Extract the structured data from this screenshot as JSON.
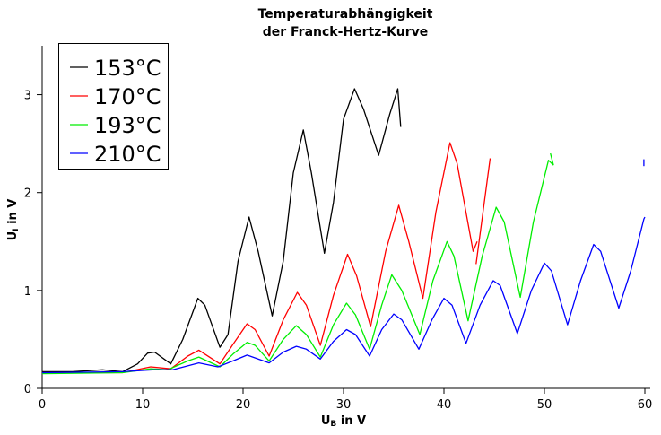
{
  "chart_data": {
    "type": "line",
    "title": "Temperaturabhängigkeit",
    "subtitle": "der Franck-Hertz-Kurve",
    "xlabel": {
      "main": "U",
      "sub": "B",
      "rest": " in V"
    },
    "ylabel": {
      "main": "U",
      "sub": "I",
      "rest": " in V"
    },
    "xlim": [
      0,
      60
    ],
    "ylim": [
      0,
      3.5
    ],
    "xticks": [
      0,
      10,
      20,
      30,
      40,
      50,
      60
    ],
    "yticks": [
      0,
      1,
      2,
      3
    ],
    "grid": false,
    "legend_position": "top-left",
    "series": [
      {
        "name": "153°C",
        "color": "#000000",
        "points": [
          [
            0,
            0.17
          ],
          [
            3,
            0.17
          ],
          [
            6,
            0.19
          ],
          [
            8,
            0.17
          ],
          [
            9.5,
            0.25
          ],
          [
            10.5,
            0.36
          ],
          [
            11.2,
            0.37
          ],
          [
            12.8,
            0.25
          ],
          [
            14,
            0.5
          ],
          [
            15.5,
            0.92
          ],
          [
            16.2,
            0.85
          ],
          [
            17.7,
            0.42
          ],
          [
            18.5,
            0.55
          ],
          [
            19.5,
            1.3
          ],
          [
            20.6,
            1.75
          ],
          [
            21.5,
            1.4
          ],
          [
            22.9,
            0.74
          ],
          [
            24,
            1.3
          ],
          [
            25,
            2.2
          ],
          [
            26,
            2.64
          ],
          [
            26.8,
            2.2
          ],
          [
            28.1,
            1.38
          ],
          [
            29,
            1.9
          ],
          [
            30,
            2.75
          ],
          [
            31.1,
            3.06
          ],
          [
            32,
            2.85
          ],
          [
            33.5,
            2.38
          ],
          [
            34.6,
            2.8
          ],
          [
            35.4,
            3.06
          ],
          [
            35.7,
            2.67
          ]
        ],
        "extra": []
      },
      {
        "name": "170°C",
        "color": "#ff0000",
        "points": [
          [
            0,
            0.16
          ],
          [
            8,
            0.16
          ],
          [
            10.8,
            0.22
          ],
          [
            12.8,
            0.2
          ],
          [
            14.5,
            0.33
          ],
          [
            15.6,
            0.39
          ],
          [
            17.7,
            0.25
          ],
          [
            19,
            0.45
          ],
          [
            20.4,
            0.66
          ],
          [
            21.2,
            0.6
          ],
          [
            22.6,
            0.33
          ],
          [
            24,
            0.7
          ],
          [
            25.4,
            0.98
          ],
          [
            26.3,
            0.85
          ],
          [
            27.7,
            0.44
          ],
          [
            29,
            0.95
          ],
          [
            30.4,
            1.37
          ],
          [
            31.3,
            1.15
          ],
          [
            32.7,
            0.63
          ],
          [
            34.2,
            1.4
          ],
          [
            35.5,
            1.87
          ],
          [
            36.5,
            1.5
          ],
          [
            37.9,
            0.92
          ],
          [
            39.2,
            1.8
          ],
          [
            40.6,
            2.51
          ],
          [
            41.3,
            2.3
          ],
          [
            42.9,
            1.4
          ],
          [
            43.3,
            1.5
          ]
        ],
        "extra": [
          [
            43.2,
            1.27
          ],
          [
            44.6,
            2.35
          ]
        ]
      },
      {
        "name": "193°C",
        "color": "#00ee00",
        "points": [
          [
            0,
            0.15
          ],
          [
            8,
            0.16
          ],
          [
            10.8,
            0.2
          ],
          [
            12.5,
            0.19
          ],
          [
            14.5,
            0.28
          ],
          [
            15.6,
            0.32
          ],
          [
            17.7,
            0.22
          ],
          [
            19,
            0.35
          ],
          [
            20.4,
            0.47
          ],
          [
            21.2,
            0.44
          ],
          [
            22.6,
            0.28
          ],
          [
            24,
            0.5
          ],
          [
            25.3,
            0.64
          ],
          [
            26.3,
            0.55
          ],
          [
            27.7,
            0.32
          ],
          [
            29,
            0.65
          ],
          [
            30.3,
            0.87
          ],
          [
            31.2,
            0.75
          ],
          [
            32.6,
            0.4
          ],
          [
            33.8,
            0.85
          ],
          [
            34.8,
            1.16
          ],
          [
            35.8,
            1.0
          ],
          [
            37.6,
            0.55
          ],
          [
            38.9,
            1.1
          ],
          [
            40.3,
            1.5
          ],
          [
            41,
            1.35
          ],
          [
            42.4,
            0.69
          ],
          [
            43.8,
            1.35
          ],
          [
            45.2,
            1.85
          ],
          [
            46,
            1.7
          ],
          [
            47.6,
            0.93
          ],
          [
            48.9,
            1.7
          ],
          [
            50.4,
            2.33
          ],
          [
            50.9,
            2.28
          ]
        ],
        "extra": [
          [
            50.6,
            2.4
          ],
          [
            50.9,
            2.28
          ]
        ]
      },
      {
        "name": "210°C",
        "color": "#0000ff",
        "points": [
          [
            0,
            0.16
          ],
          [
            8,
            0.17
          ],
          [
            11,
            0.19
          ],
          [
            13,
            0.19
          ],
          [
            15.6,
            0.26
          ],
          [
            17.5,
            0.22
          ],
          [
            19,
            0.28
          ],
          [
            20.4,
            0.34
          ],
          [
            22.6,
            0.26
          ],
          [
            24,
            0.37
          ],
          [
            25.3,
            0.43
          ],
          [
            26.3,
            0.4
          ],
          [
            27.7,
            0.3
          ],
          [
            29,
            0.48
          ],
          [
            30.3,
            0.6
          ],
          [
            31.2,
            0.55
          ],
          [
            32.6,
            0.33
          ],
          [
            33.8,
            0.6
          ],
          [
            35,
            0.76
          ],
          [
            35.8,
            0.7
          ],
          [
            37.5,
            0.4
          ],
          [
            38.8,
            0.7
          ],
          [
            40,
            0.92
          ],
          [
            40.8,
            0.85
          ],
          [
            42.2,
            0.46
          ],
          [
            43.6,
            0.85
          ],
          [
            44.9,
            1.1
          ],
          [
            45.6,
            1.05
          ],
          [
            47.3,
            0.56
          ],
          [
            48.7,
            1.0
          ],
          [
            50,
            1.28
          ],
          [
            50.7,
            1.2
          ],
          [
            52.3,
            0.65
          ],
          [
            53.6,
            1.1
          ],
          [
            54.9,
            1.47
          ],
          [
            55.6,
            1.4
          ],
          [
            57.4,
            0.82
          ],
          [
            58.6,
            1.2
          ],
          [
            59.9,
            1.73
          ],
          [
            60,
            1.75
          ]
        ],
        "extra": [
          [
            59.9,
            2.27
          ],
          [
            59.9,
            2.34
          ]
        ]
      }
    ]
  }
}
